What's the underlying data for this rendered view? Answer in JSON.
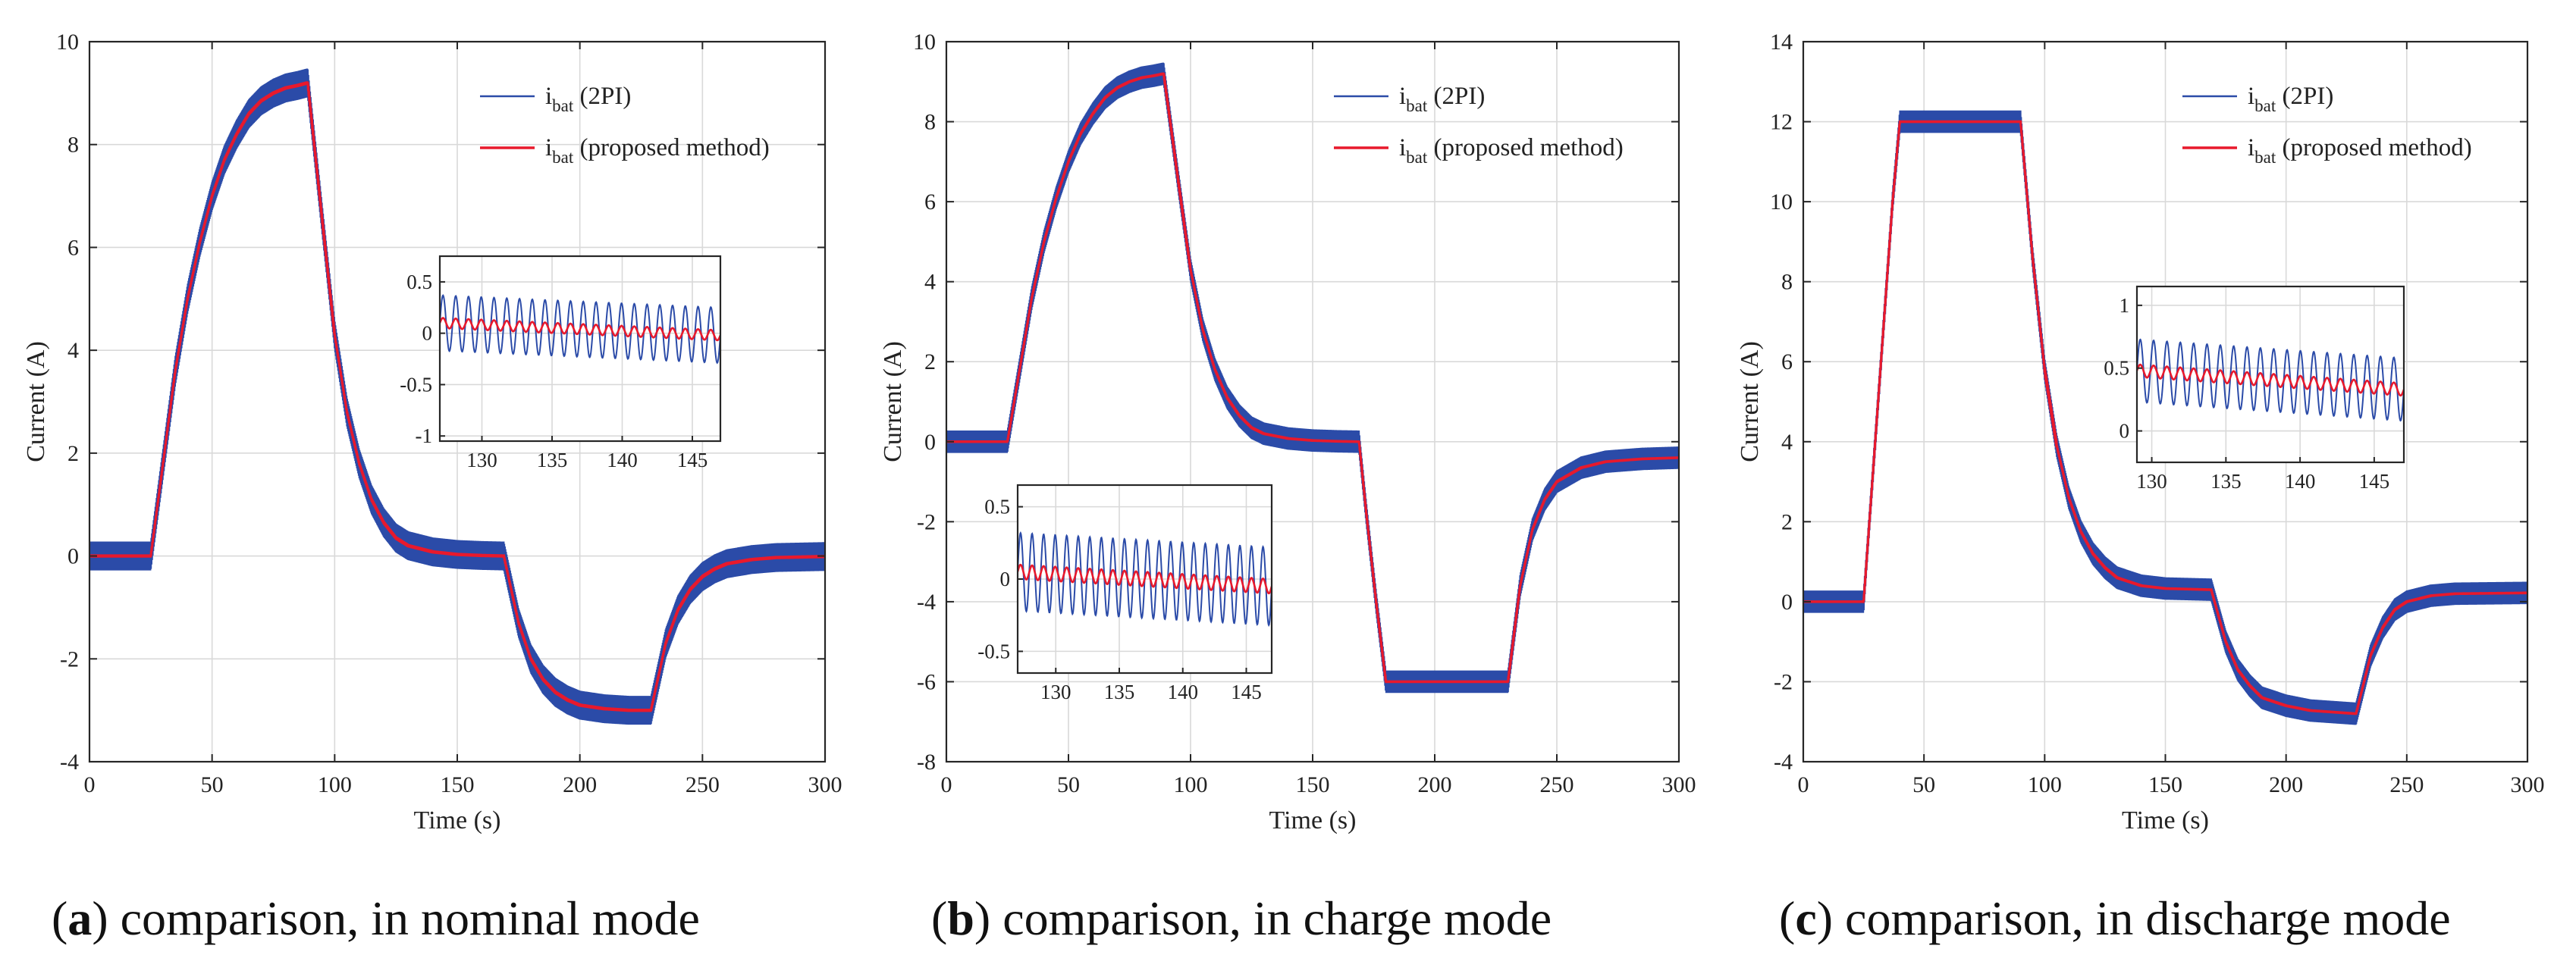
{
  "colors": {
    "pi": "#2b4ba8",
    "proposed": "#e8192c",
    "grid": "#d9d9d9"
  },
  "chart_data": [
    {
      "type": "line",
      "caption": {
        "letter": "a",
        "text": "comparison, in nominal mode"
      },
      "xlabel": "Time (s)",
      "ylabel": "Current (A)",
      "xlim": [
        0,
        300
      ],
      "ylim": [
        -4,
        10
      ],
      "xticks": [
        0,
        50,
        100,
        150,
        200,
        250,
        300
      ],
      "yticks": [
        -4,
        -2,
        0,
        2,
        4,
        6,
        8,
        10
      ],
      "grid": true,
      "legend_position": "top-right",
      "series": [
        {
          "name_main": "i",
          "name_sub": "bat",
          "name_rest": " (2PI)",
          "ripple_amplitude": 0.28
        },
        {
          "name_main": "i",
          "name_sub": "bat",
          "name_rest": " (proposed method)",
          "ripple_amplitude": 0.03
        }
      ],
      "profile": [
        {
          "x": 0,
          "y": 0
        },
        {
          "x": 25,
          "y": 0
        },
        {
          "x": 30,
          "y": 1.8
        },
        {
          "x": 35,
          "y": 3.6
        },
        {
          "x": 40,
          "y": 5.0
        },
        {
          "x": 45,
          "y": 6.1
        },
        {
          "x": 50,
          "y": 7.0
        },
        {
          "x": 55,
          "y": 7.7
        },
        {
          "x": 60,
          "y": 8.2
        },
        {
          "x": 65,
          "y": 8.6
        },
        {
          "x": 70,
          "y": 8.85
        },
        {
          "x": 75,
          "y": 9.0
        },
        {
          "x": 80,
          "y": 9.1
        },
        {
          "x": 85,
          "y": 9.15
        },
        {
          "x": 89,
          "y": 9.2
        },
        {
          "x": 95,
          "y": 6.5
        },
        {
          "x": 100,
          "y": 4.3
        },
        {
          "x": 105,
          "y": 2.8
        },
        {
          "x": 110,
          "y": 1.8
        },
        {
          "x": 115,
          "y": 1.1
        },
        {
          "x": 120,
          "y": 0.65
        },
        {
          "x": 125,
          "y": 0.35
        },
        {
          "x": 130,
          "y": 0.2
        },
        {
          "x": 140,
          "y": 0.08
        },
        {
          "x": 150,
          "y": 0.03
        },
        {
          "x": 160,
          "y": 0.01
        },
        {
          "x": 169,
          "y": 0
        },
        {
          "x": 175,
          "y": -1.3
        },
        {
          "x": 180,
          "y": -2.0
        },
        {
          "x": 185,
          "y": -2.4
        },
        {
          "x": 190,
          "y": -2.65
        },
        {
          "x": 195,
          "y": -2.8
        },
        {
          "x": 200,
          "y": -2.9
        },
        {
          "x": 210,
          "y": -2.97
        },
        {
          "x": 220,
          "y": -3.0
        },
        {
          "x": 229,
          "y": -3.0
        },
        {
          "x": 235,
          "y": -1.7
        },
        {
          "x": 240,
          "y": -1.05
        },
        {
          "x": 245,
          "y": -0.65
        },
        {
          "x": 250,
          "y": -0.4
        },
        {
          "x": 255,
          "y": -0.25
        },
        {
          "x": 260,
          "y": -0.15
        },
        {
          "x": 270,
          "y": -0.07
        },
        {
          "x": 280,
          "y": -0.03
        },
        {
          "x": 300,
          "y": -0.01
        }
      ],
      "inset": {
        "position": "right-middle",
        "xlim": [
          127,
          147
        ],
        "ylim": [
          -1.05,
          0.75
        ],
        "xticks": [
          130,
          135,
          140,
          145
        ],
        "yticks": [
          0.5,
          0,
          -0.5,
          -1
        ],
        "center_start": 0.1,
        "center_end": -0.02,
        "pi_amplitude": 0.27,
        "proposed_amplitude": 0.05,
        "cycles": 22
      }
    },
    {
      "type": "line",
      "caption": {
        "letter": "b",
        "text": "comparison, in charge mode"
      },
      "xlabel": "Time (s)",
      "ylabel": "Current (A)",
      "xlim": [
        0,
        300
      ],
      "ylim": [
        -8,
        10
      ],
      "xticks": [
        0,
        50,
        100,
        150,
        200,
        250,
        300
      ],
      "yticks": [
        -8,
        -6,
        -4,
        -2,
        0,
        2,
        4,
        6,
        8,
        10
      ],
      "grid": true,
      "legend_position": "top-right",
      "series": [
        {
          "name_main": "i",
          "name_sub": "bat",
          "name_rest": " (2PI)",
          "ripple_amplitude": 0.28
        },
        {
          "name_main": "i",
          "name_sub": "bat",
          "name_rest": " (proposed method)",
          "ripple_amplitude": 0.03
        }
      ],
      "profile": [
        {
          "x": 0,
          "y": 0
        },
        {
          "x": 25,
          "y": 0
        },
        {
          "x": 30,
          "y": 1.8
        },
        {
          "x": 35,
          "y": 3.6
        },
        {
          "x": 40,
          "y": 5.0
        },
        {
          "x": 45,
          "y": 6.1
        },
        {
          "x": 50,
          "y": 7.0
        },
        {
          "x": 55,
          "y": 7.7
        },
        {
          "x": 60,
          "y": 8.2
        },
        {
          "x": 65,
          "y": 8.6
        },
        {
          "x": 70,
          "y": 8.85
        },
        {
          "x": 75,
          "y": 9.0
        },
        {
          "x": 80,
          "y": 9.1
        },
        {
          "x": 85,
          "y": 9.15
        },
        {
          "x": 89,
          "y": 9.2
        },
        {
          "x": 95,
          "y": 6.5
        },
        {
          "x": 100,
          "y": 4.3
        },
        {
          "x": 105,
          "y": 2.8
        },
        {
          "x": 110,
          "y": 1.8
        },
        {
          "x": 115,
          "y": 1.1
        },
        {
          "x": 120,
          "y": 0.65
        },
        {
          "x": 125,
          "y": 0.35
        },
        {
          "x": 130,
          "y": 0.2
        },
        {
          "x": 140,
          "y": 0.08
        },
        {
          "x": 150,
          "y": 0.03
        },
        {
          "x": 160,
          "y": 0.01
        },
        {
          "x": 169,
          "y": 0
        },
        {
          "x": 172,
          "y": -1.8
        },
        {
          "x": 176,
          "y": -4.0
        },
        {
          "x": 180,
          "y": -6.0
        },
        {
          "x": 230,
          "y": -6.0
        },
        {
          "x": 235,
          "y": -3.6
        },
        {
          "x": 240,
          "y": -2.2
        },
        {
          "x": 245,
          "y": -1.45
        },
        {
          "x": 250,
          "y": -1.0
        },
        {
          "x": 260,
          "y": -0.65
        },
        {
          "x": 270,
          "y": -0.5
        },
        {
          "x": 285,
          "y": -0.43
        },
        {
          "x": 300,
          "y": -0.4
        }
      ],
      "inset": {
        "position": "left-bottom",
        "xlim": [
          127,
          147
        ],
        "ylim": [
          -0.65,
          0.65
        ],
        "xticks": [
          130,
          135,
          140,
          145
        ],
        "yticks": [
          0.5,
          0,
          -0.5
        ],
        "center_start": 0.05,
        "center_end": -0.05,
        "pi_amplitude": 0.27,
        "proposed_amplitude": 0.05,
        "cycles": 22
      }
    },
    {
      "type": "line",
      "caption": {
        "letter": "c",
        "text": "comparison, in discharge mode"
      },
      "xlabel": "Time (s)",
      "ylabel": "Current (A)",
      "xlim": [
        0,
        300
      ],
      "ylim": [
        -4,
        14
      ],
      "xticks": [
        0,
        50,
        100,
        150,
        200,
        250,
        300
      ],
      "yticks": [
        -4,
        -2,
        0,
        2,
        4,
        6,
        8,
        10,
        12,
        14
      ],
      "grid": true,
      "legend_position": "top-right",
      "series": [
        {
          "name_main": "i",
          "name_sub": "bat",
          "name_rest": " (2PI)",
          "ripple_amplitude": 0.28
        },
        {
          "name_main": "i",
          "name_sub": "bat",
          "name_rest": " (proposed method)",
          "ripple_amplitude": 0.03
        }
      ],
      "profile": [
        {
          "x": 0,
          "y": 0
        },
        {
          "x": 25,
          "y": 0
        },
        {
          "x": 28,
          "y": 2.5
        },
        {
          "x": 31,
          "y": 5.0
        },
        {
          "x": 34,
          "y": 7.5
        },
        {
          "x": 37,
          "y": 10.0
        },
        {
          "x": 40,
          "y": 12.0
        },
        {
          "x": 90,
          "y": 12.0
        },
        {
          "x": 95,
          "y": 8.6
        },
        {
          "x": 100,
          "y": 5.8
        },
        {
          "x": 105,
          "y": 3.9
        },
        {
          "x": 110,
          "y": 2.6
        },
        {
          "x": 115,
          "y": 1.75
        },
        {
          "x": 120,
          "y": 1.2
        },
        {
          "x": 125,
          "y": 0.85
        },
        {
          "x": 130,
          "y": 0.6
        },
        {
          "x": 140,
          "y": 0.4
        },
        {
          "x": 150,
          "y": 0.33
        },
        {
          "x": 169,
          "y": 0.3
        },
        {
          "x": 175,
          "y": -1.0
        },
        {
          "x": 180,
          "y": -1.7
        },
        {
          "x": 185,
          "y": -2.1
        },
        {
          "x": 190,
          "y": -2.4
        },
        {
          "x": 200,
          "y": -2.6
        },
        {
          "x": 210,
          "y": -2.72
        },
        {
          "x": 229,
          "y": -2.8
        },
        {
          "x": 235,
          "y": -1.35
        },
        {
          "x": 240,
          "y": -0.65
        },
        {
          "x": 245,
          "y": -0.2
        },
        {
          "x": 250,
          "y": 0.0
        },
        {
          "x": 260,
          "y": 0.15
        },
        {
          "x": 270,
          "y": 0.2
        },
        {
          "x": 300,
          "y": 0.22
        }
      ],
      "inset": {
        "position": "right-middle",
        "xlim": [
          129,
          147
        ],
        "ylim": [
          -0.25,
          1.15
        ],
        "xticks": [
          130,
          135,
          140,
          145
        ],
        "yticks": [
          1,
          0.5,
          0
        ],
        "center_start": 0.48,
        "center_end": 0.33,
        "pi_amplitude": 0.25,
        "proposed_amplitude": 0.05,
        "cycles": 20
      }
    }
  ]
}
